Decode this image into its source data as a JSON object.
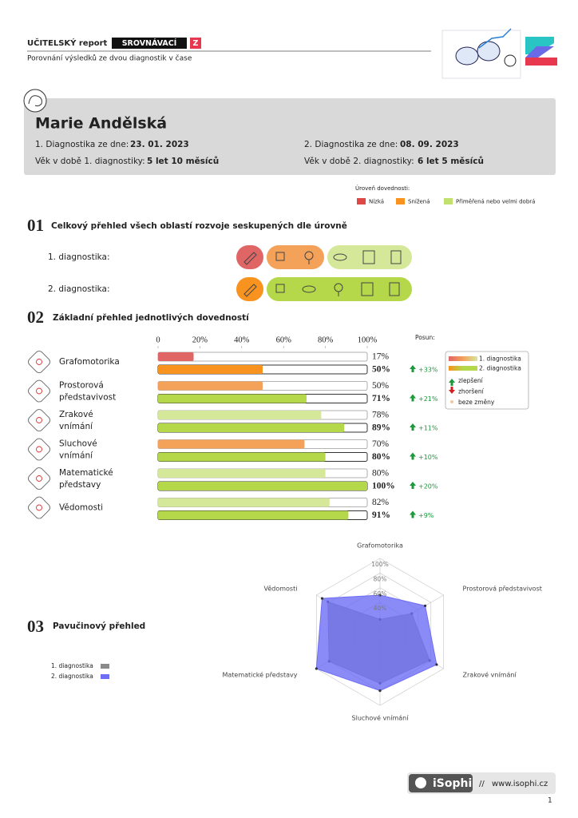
{
  "header": {
    "title": "UČITELSKÝ report",
    "badge": "SROVNÁVACÍ",
    "badge_letter": "Z",
    "subtitle": "Porovnání výsledků ze dvou diagnostik v čase"
  },
  "student": {
    "name": "Marie Andělská",
    "diag1_label": "1. Diagnostika ze dne:",
    "diag1_date": "23. 01. 2023",
    "age1_label": "Věk v době 1. diagnostiky:",
    "age1": "5 let 10 měsíců",
    "diag2_label": "2. Diagnostika ze dne:",
    "diag2_date": "08. 09. 2023",
    "age2_label": "Věk v době 2. diagnostiky:",
    "age2": "6 let 5 měsíců"
  },
  "level_legend": {
    "title": "Úroveň dovednosti:",
    "items": [
      {
        "label": "Nízká",
        "color": "#e04848"
      },
      {
        "label": "Snížená",
        "color": "#f7931e"
      },
      {
        "label": "Přiměřená nebo velmi dobrá",
        "color": "#c2e06e"
      }
    ]
  },
  "section1": {
    "number": "01",
    "title": "Celkový přehled všech oblastí rozvoje seskupených dle úrovně",
    "rows": [
      {
        "label": "1. diagnostika:"
      },
      {
        "label": "2. diagnostika:"
      }
    ]
  },
  "chart_data": [
    {
      "type": "bar",
      "orientation": "horizontal",
      "number": "02",
      "title": "Základní přehled jednotlivých dovedností",
      "categories": [
        "Grafomotorika",
        "Prostorová představivost",
        "Zrakové vnímání",
        "Sluchové vnímání",
        "Matematické představy",
        "Vědomosti"
      ],
      "xlim": [
        0,
        100
      ],
      "xticks": [
        0,
        {
          "value": 20,
          "label": "20%"
        },
        {
          "value": 40,
          "label": "40%"
        },
        {
          "value": 60,
          "label": "60%"
        },
        {
          "value": 80,
          "label": "80%"
        },
        {
          "value": 100,
          "label": "100%"
        }
      ],
      "series": [
        {
          "name": "1. diagnostika",
          "color": "#d5e89a",
          "colors": [
            "#e06666",
            "#f4a25a",
            "#d5e89a",
            "#f4a25a",
            "#d5e89a",
            "#d5e89a"
          ],
          "values": [
            17,
            50,
            78,
            70,
            80,
            82
          ],
          "value_labels": [
            "17%",
            "50%",
            "78%",
            "70%",
            "80%",
            "82%"
          ]
        },
        {
          "name": "2. diagnostika",
          "color": "#b5d84a",
          "colors": [
            "#f7931e",
            "#b5d84a",
            "#b5d84a",
            "#b5d84a",
            "#b5d84a",
            "#b5d84a"
          ],
          "values": [
            50,
            71,
            89,
            80,
            100,
            91
          ],
          "value_labels": [
            "50%",
            "71%",
            "89%",
            "80%",
            "100%",
            "91%"
          ]
        }
      ],
      "change": {
        "title": "Posun:",
        "values": [
          33,
          21,
          11,
          10,
          20,
          9
        ],
        "value_labels": [
          "+33%",
          "+21%",
          "+11%",
          "+10%",
          "+20%",
          "+9%"
        ]
      },
      "indicator_legend": [
        "zlepšení",
        "zhoršení",
        "beze změny"
      ]
    },
    {
      "type": "radar",
      "number": "03",
      "title": "Pavučinový přehled",
      "categories": [
        "Grafomotorika",
        "Prostorová představivost",
        "Zrakové vnímání",
        "Sluchové vnímání",
        "Matematické představy",
        "Vědomosti"
      ],
      "rlim": [
        0,
        100
      ],
      "rticks": [
        {
          "value": 40,
          "label": "40%"
        },
        {
          "value": 60,
          "label": "60%"
        },
        {
          "value": 80,
          "label": "80%"
        },
        {
          "value": 100,
          "label": "100%"
        }
      ],
      "series": [
        {
          "name": "1. diagnostika",
          "color": "#8a8a8a",
          "values": [
            17,
            50,
            78,
            70,
            80,
            82
          ]
        },
        {
          "name": "2. diagnostika",
          "color": "#6e6ef5",
          "values": [
            50,
            71,
            89,
            80,
            100,
            91
          ]
        }
      ]
    }
  ]
}
